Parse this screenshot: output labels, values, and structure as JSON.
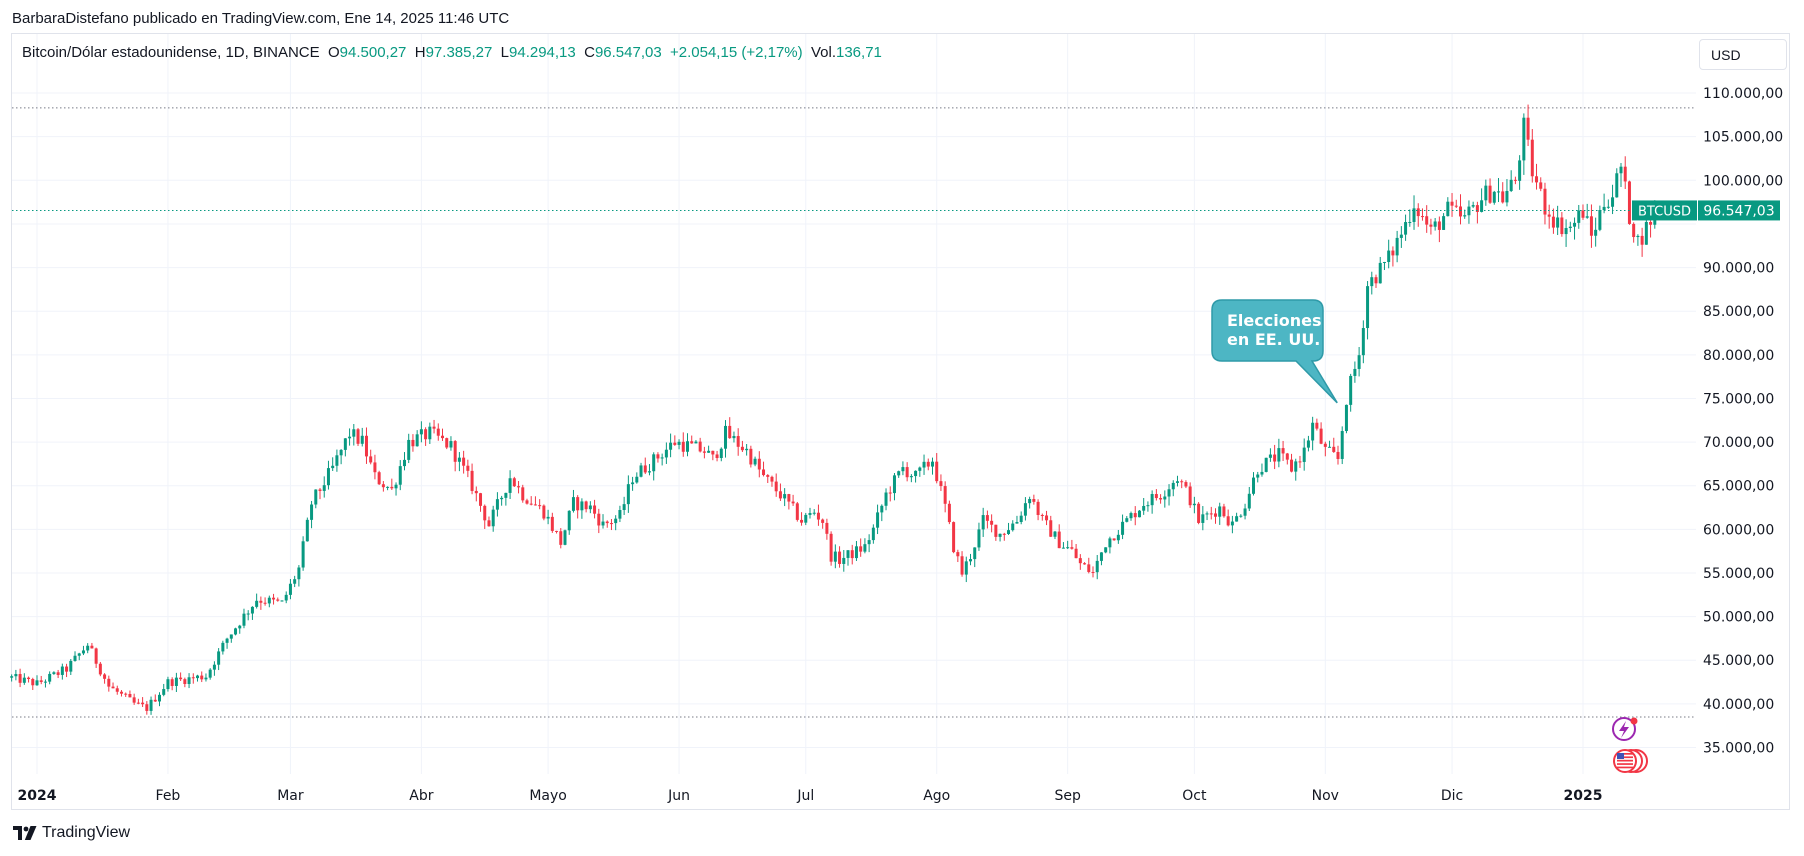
{
  "header": {
    "attribution": "BarbaraDistefano publicado en TradingView.com, Ene 14, 2025 11:46 UTC"
  },
  "legend": {
    "symbol": "Bitcoin/Dólar estadounidense, 1D, BINANCE",
    "open_label": "O",
    "open": "94.500,27",
    "high_label": "H",
    "high": "97.385,27",
    "low_label": "L",
    "low": "94.294,13",
    "close_label": "C",
    "close": "96.547,03",
    "change": "+2.054,15 (+2,17%)",
    "vol_label": "Vol.",
    "vol": "136,71"
  },
  "currency_button": {
    "label": "USD"
  },
  "price_tag": {
    "symbol": "BTCUSD",
    "price": "96.547,03",
    "value": 96547.03
  },
  "annotation": {
    "line1": "Elecciones",
    "line2": "en EE. UU."
  },
  "footer": {
    "logo_text": "TradingView"
  },
  "colors": {
    "up": "#089981",
    "down": "#f23645",
    "callout": "#4db6c4",
    "grid": "#f0f3fa",
    "dotted": "#787b86"
  },
  "chart_data": {
    "type": "candlestick",
    "title": "Bitcoin/Dólar estadounidense, 1D, BINANCE",
    "xlabel": "",
    "ylabel": "",
    "ylim": [
      30000,
      113500
    ],
    "grid": true,
    "x_ticks": [
      {
        "label": "2024",
        "day": 0,
        "bold": true
      },
      {
        "label": "Feb",
        "day": 31
      },
      {
        "label": "Mar",
        "day": 60
      },
      {
        "label": "Abr",
        "day": 91
      },
      {
        "label": "Mayo",
        "day": 121
      },
      {
        "label": "Jun",
        "day": 152
      },
      {
        "label": "Jul",
        "day": 182
      },
      {
        "label": "Ago",
        "day": 213
      },
      {
        "label": "Sep",
        "day": 244
      },
      {
        "label": "Oct",
        "day": 274
      },
      {
        "label": "Nov",
        "day": 305
      },
      {
        "label": "Dic",
        "day": 335
      },
      {
        "label": "2025",
        "day": 366,
        "bold": true
      }
    ],
    "y_ticks": [
      {
        "label": "35.000,00",
        "value": 35000
      },
      {
        "label": "40.000,00",
        "value": 40000
      },
      {
        "label": "45.000,00",
        "value": 45000
      },
      {
        "label": "50.000,00",
        "value": 50000
      },
      {
        "label": "55.000,00",
        "value": 55000
      },
      {
        "label": "60.000,00",
        "value": 60000
      },
      {
        "label": "65.000,00",
        "value": 65000
      },
      {
        "label": "70.000,00",
        "value": 70000
      },
      {
        "label": "75.000,00",
        "value": 75000
      },
      {
        "label": "80.000,00",
        "value": 80000
      },
      {
        "label": "85.000,00",
        "value": 85000
      },
      {
        "label": "90.000,00",
        "value": 90000
      },
      {
        "label": "100.000,00",
        "value": 100000
      },
      {
        "label": "105.000,00",
        "value": 105000
      },
      {
        "label": "110.000,00",
        "value": 110000
      }
    ],
    "range_lines": [
      108300,
      38500
    ],
    "annotation_day": 309,
    "price_path": [
      [
        -6,
        43000
      ],
      [
        0,
        42300
      ],
      [
        7,
        44000
      ],
      [
        12,
        46800
      ],
      [
        17,
        42000
      ],
      [
        23,
        40000
      ],
      [
        26,
        39500
      ],
      [
        31,
        42500
      ],
      [
        40,
        43200
      ],
      [
        45,
        47500
      ],
      [
        52,
        52000
      ],
      [
        58,
        51500
      ],
      [
        62,
        55500
      ],
      [
        65,
        63000
      ],
      [
        70,
        67000
      ],
      [
        74,
        71000
      ],
      [
        77,
        70000
      ],
      [
        80,
        66000
      ],
      [
        84,
        64500
      ],
      [
        88,
        70000
      ],
      [
        93,
        71000
      ],
      [
        98,
        69500
      ],
      [
        103,
        65000
      ],
      [
        107,
        60500
      ],
      [
        112,
        66000
      ],
      [
        115,
        64000
      ],
      [
        120,
        62000
      ],
      [
        124,
        58500
      ],
      [
        127,
        63000
      ],
      [
        131,
        62500
      ],
      [
        134,
        60500
      ],
      [
        138,
        61500
      ],
      [
        141,
        66000
      ],
      [
        145,
        67500
      ],
      [
        151,
        70000
      ],
      [
        158,
        69000
      ],
      [
        160,
        68000
      ],
      [
        163,
        71000
      ],
      [
        168,
        69000
      ],
      [
        172,
        66000
      ],
      [
        176,
        64000
      ],
      [
        181,
        61000
      ],
      [
        184,
        62000
      ],
      [
        186,
        61000
      ],
      [
        188,
        57000
      ],
      [
        190,
        56500
      ],
      [
        194,
        57500
      ],
      [
        196,
        58000
      ],
      [
        198,
        60000
      ],
      [
        201,
        64000
      ],
      [
        205,
        67000
      ],
      [
        208,
        66000
      ],
      [
        210,
        67000
      ],
      [
        212,
        68000
      ],
      [
        215,
        62500
      ],
      [
        217,
        58000
      ],
      [
        219,
        55000
      ],
      [
        221,
        57000
      ],
      [
        224,
        61000
      ],
      [
        228,
        59500
      ],
      [
        232,
        61000
      ],
      [
        235,
        64000
      ],
      [
        238,
        61000
      ],
      [
        242,
        58500
      ],
      [
        245,
        57500
      ],
      [
        247,
        56000
      ],
      [
        250,
        55000
      ],
      [
        253,
        58500
      ],
      [
        257,
        60500
      ],
      [
        262,
        63000
      ],
      [
        266,
        64000
      ],
      [
        270,
        66000
      ],
      [
        273,
        63500
      ],
      [
        275,
        61000
      ],
      [
        280,
        62500
      ],
      [
        283,
        60500
      ],
      [
        286,
        63000
      ],
      [
        289,
        67000
      ],
      [
        294,
        68500
      ],
      [
        297,
        67000
      ],
      [
        300,
        69000
      ],
      [
        302,
        72000
      ],
      [
        305,
        69000
      ],
      [
        308,
        68000
      ],
      [
        310,
        75000
      ],
      [
        313,
        80000
      ],
      [
        315,
        88000
      ],
      [
        320,
        91000
      ],
      [
        324,
        95000
      ],
      [
        326,
        97500
      ],
      [
        330,
        94000
      ],
      [
        334,
        96500
      ],
      [
        338,
        95500
      ],
      [
        342,
        98000
      ],
      [
        345,
        99000
      ],
      [
        347,
        98000
      ],
      [
        350,
        100000
      ],
      [
        352,
        106000
      ],
      [
        354,
        101000
      ],
      [
        357,
        97000
      ],
      [
        360,
        95000
      ],
      [
        363,
        94500
      ],
      [
        366,
        96500
      ],
      [
        368,
        93500
      ],
      [
        371,
        97500
      ],
      [
        373,
        98500
      ],
      [
        375,
        101500
      ],
      [
        377,
        96000
      ],
      [
        379,
        93000
      ],
      [
        381,
        94500
      ],
      [
        383,
        96547
      ]
    ]
  }
}
